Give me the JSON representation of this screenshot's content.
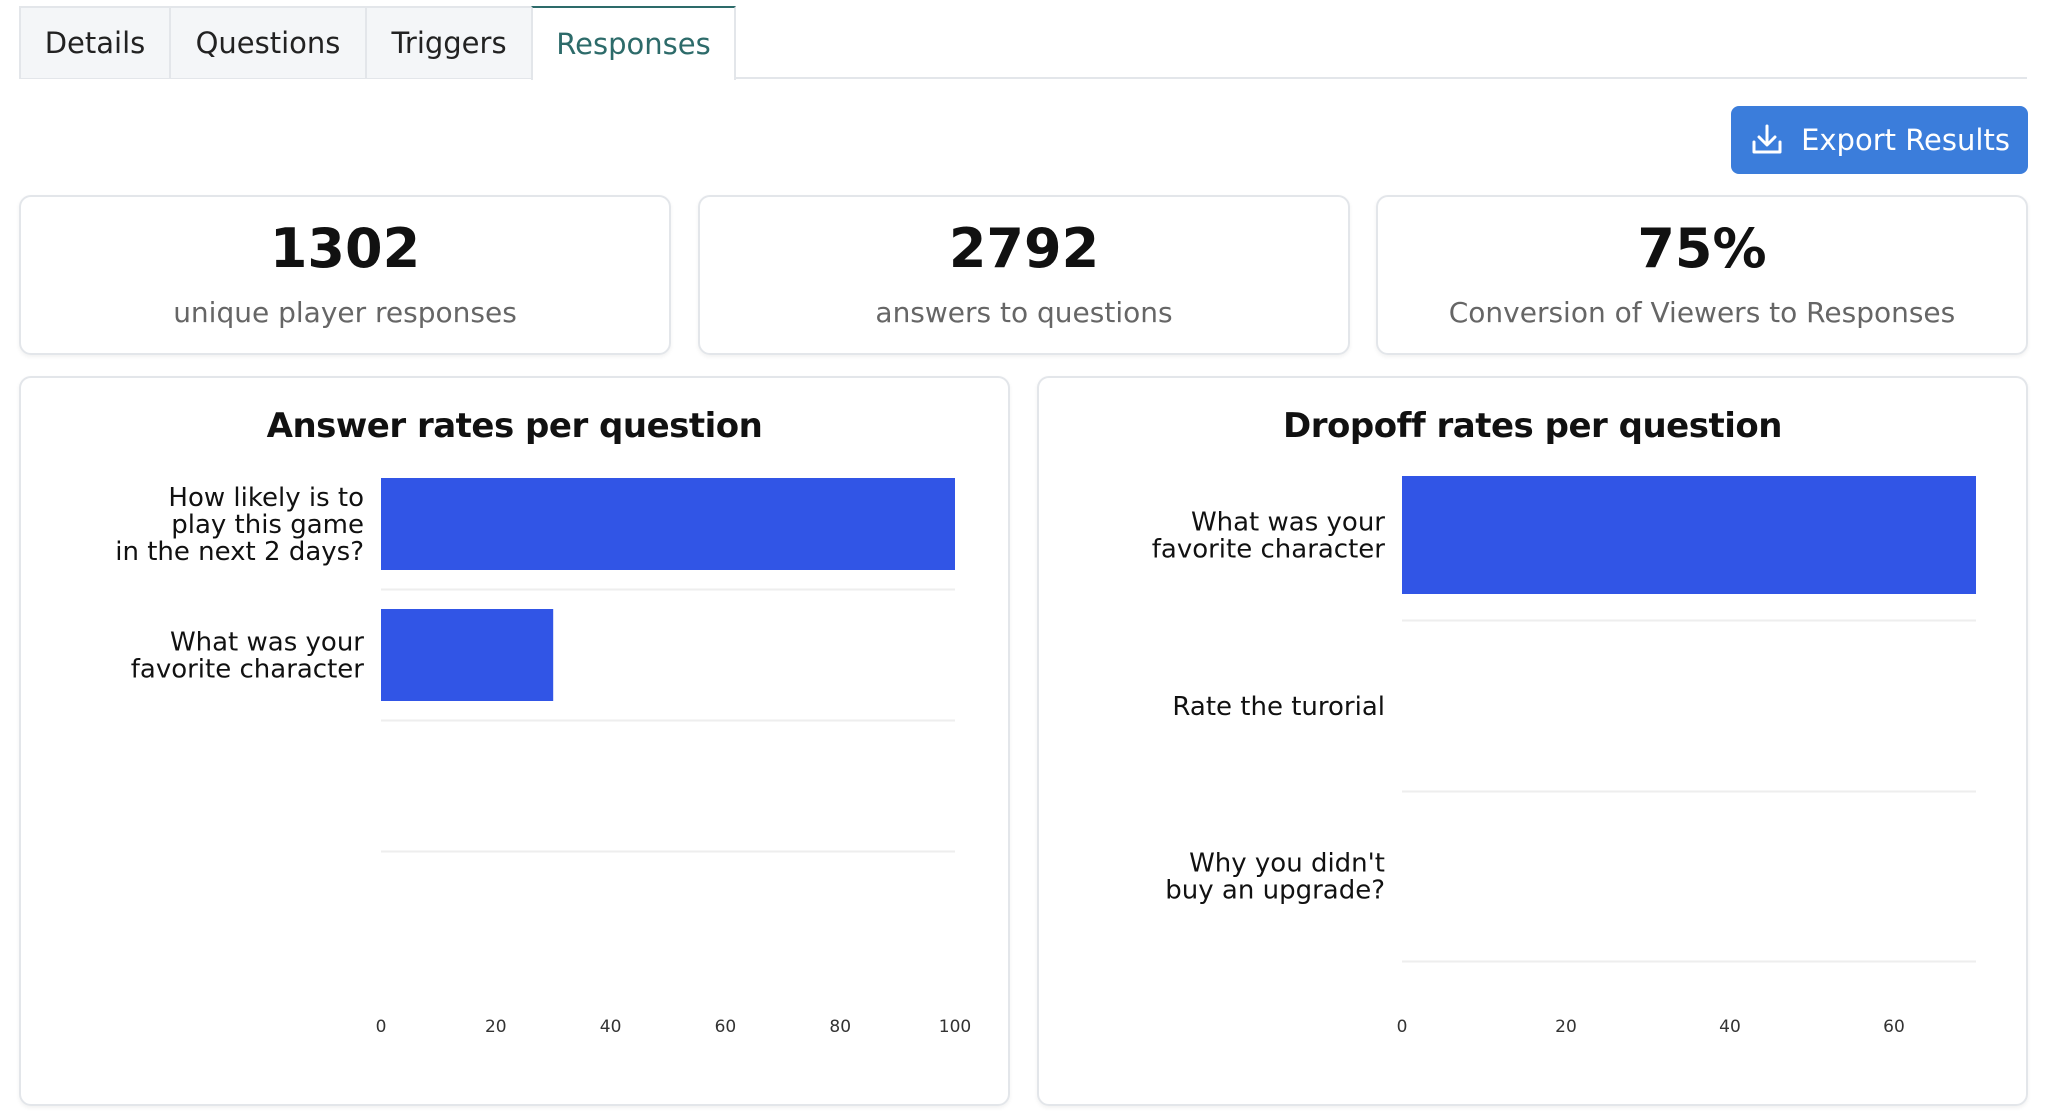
{
  "tabs": [
    {
      "label": "Details",
      "active": false
    },
    {
      "label": "Questions",
      "active": false
    },
    {
      "label": "Triggers",
      "active": false
    },
    {
      "label": "Responses",
      "active": true
    }
  ],
  "export_button": {
    "label": "Export Results",
    "icon": "download-icon"
  },
  "stats": [
    {
      "value": "1302",
      "label": "unique player responses"
    },
    {
      "value": "2792",
      "label": "answers to questions"
    },
    {
      "value": "75%",
      "label": "Conversion of Viewers to Responses"
    }
  ],
  "colors": {
    "bar": "#3155e6",
    "accent": "#2d6b6a",
    "button": "#3b7ddb"
  },
  "chart_data": [
    {
      "type": "bar",
      "orientation": "horizontal",
      "title": "Answer rates per question",
      "categories": [
        [
          "How likely is to",
          "play this game",
          "in the next 2 days?"
        ],
        [
          "What was your",
          "favorite character"
        ],
        [
          ""
        ]
      ],
      "values": [
        100,
        30,
        0
      ],
      "xlim": [
        0,
        100
      ],
      "xticks": [
        "0",
        "20",
        "40",
        "60",
        "80",
        "100"
      ]
    },
    {
      "type": "bar",
      "orientation": "horizontal",
      "title": "Dropoff rates per question",
      "categories": [
        [
          "What was your",
          "favorite character"
        ],
        [
          "Rate the turorial"
        ],
        [
          "Why you didn't",
          "buy an upgrade?"
        ]
      ],
      "values": [
        70,
        0,
        0
      ],
      "xlim": [
        0,
        70
      ],
      "xticks": [
        "0",
        "20",
        "40",
        "60"
      ]
    }
  ]
}
